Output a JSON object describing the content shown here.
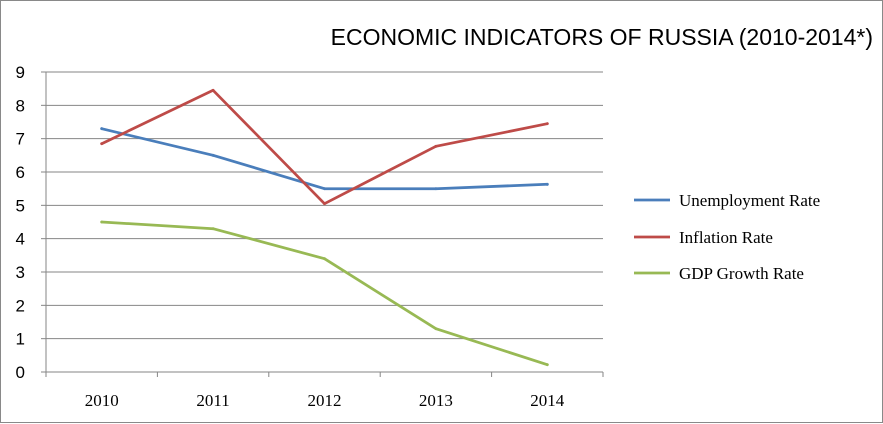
{
  "chart_data": {
    "type": "line",
    "title": "ECONOMIC INDICATORS OF RUSSIA (2010-2014*)",
    "xlabel": "",
    "ylabel": "",
    "categories": [
      "2010",
      "2011",
      "2012",
      "2013",
      "2014"
    ],
    "ylim": [
      0,
      9
    ],
    "yticks": [
      "0",
      "1",
      "2",
      "3",
      "4",
      "5",
      "6",
      "7",
      "8",
      "9"
    ],
    "grid": true,
    "legend_position": "right",
    "series": [
      {
        "name": "Unemployment Rate",
        "color": "#4a7ebb",
        "values": [
          7.3,
          6.5,
          5.5,
          5.5,
          5.63
        ]
      },
      {
        "name": "Inflation Rate",
        "color": "#be4b48",
        "values": [
          6.85,
          8.45,
          5.05,
          6.77,
          7.45
        ]
      },
      {
        "name": "GDP Growth Rate",
        "color": "#98b954",
        "values": [
          4.5,
          4.3,
          3.4,
          1.3,
          0.22
        ]
      }
    ]
  }
}
